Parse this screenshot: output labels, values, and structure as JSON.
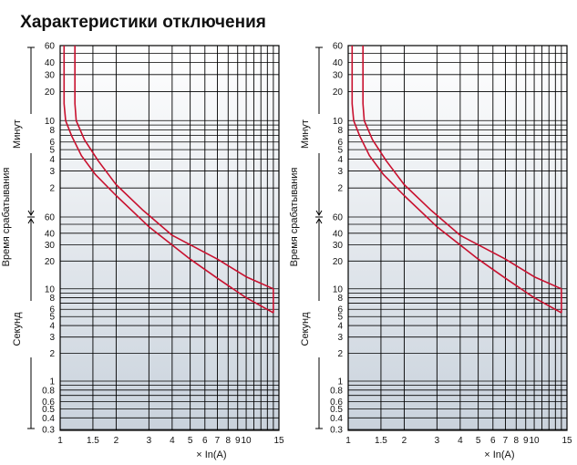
{
  "chart_data": [
    {
      "type": "line",
      "title": "Характеристики отключения",
      "xlabel": "× In(A)",
      "ylabel": "Время срабатывания",
      "y_unit_labels": [
        "Минут",
        "Секунд"
      ],
      "x_scale": "log",
      "xlim": [
        1,
        15
      ],
      "x_ticks": [
        "1",
        "1.5",
        "2",
        "3",
        "4",
        "5",
        "6",
        "7",
        "8",
        "9",
        "10",
        "15"
      ],
      "y_scale": "log",
      "y_ticks_minutes": [
        "60",
        "40",
        "30",
        "20",
        "10",
        "8",
        "6",
        "5",
        "4",
        "3",
        "2"
      ],
      "y_ticks_seconds": [
        "60",
        "40",
        "30",
        "20",
        "10",
        "8",
        "6",
        "5",
        "4",
        "3",
        "2",
        "1",
        "0.8",
        "0.6",
        "0.5",
        "0.4",
        "0.3"
      ],
      "grid": true,
      "curve_color": "#c8102e",
      "series": [
        {
          "x": [
            1.05,
            1.05,
            1.07,
            1.15,
            1.3,
            1.55,
            2.0,
            3.0,
            5.0,
            7.0,
            10.0,
            14.0
          ],
          "y_seconds": [
            3600,
            900,
            600,
            420,
            260,
            165,
            100,
            47,
            21,
            13,
            8,
            5.5
          ]
        },
        {
          "x": [
            1.2,
            1.2,
            1.22,
            1.35,
            1.6,
            2.0,
            2.8,
            4.0,
            7.0,
            10.0,
            14.0
          ],
          "y_seconds": [
            3600,
            900,
            600,
            380,
            230,
            130,
            70,
            38,
            21,
            13.5,
            10
          ]
        }
      ],
      "closure": {
        "x": 14.0,
        "y_seconds_from": 10,
        "y_seconds_to": 5.5
      }
    },
    {
      "type": "line",
      "title": "Характеристики отключения",
      "xlabel": "× In(A)",
      "ylabel": "Время срабатывания",
      "y_unit_labels": [
        "Минут",
        "Секунд"
      ],
      "x_scale": "log",
      "xlim": [
        1,
        15
      ],
      "x_ticks": [
        "1",
        "1.5",
        "2",
        "3",
        "4",
        "5",
        "6",
        "7",
        "8",
        "9",
        "10",
        "15"
      ],
      "y_scale": "log",
      "y_ticks_minutes": [
        "60",
        "40",
        "30",
        "20",
        "10",
        "8",
        "6",
        "5",
        "4",
        "3",
        "2"
      ],
      "y_ticks_seconds": [
        "60",
        "40",
        "30",
        "20",
        "10",
        "8",
        "6",
        "5",
        "4",
        "3",
        "2",
        "1",
        "0.8",
        "0.6",
        "0.5",
        "0.4",
        "0.3"
      ],
      "grid": true,
      "curve_color": "#c8102e",
      "series": [
        {
          "x": [
            1.05,
            1.05,
            1.07,
            1.15,
            1.3,
            1.55,
            2.0,
            3.0,
            5.0,
            7.0,
            10.0,
            14.0
          ],
          "y_seconds": [
            3600,
            900,
            600,
            420,
            260,
            165,
            100,
            47,
            21,
            13,
            8,
            5.5
          ]
        },
        {
          "x": [
            1.2,
            1.2,
            1.22,
            1.35,
            1.6,
            2.0,
            2.8,
            4.0,
            7.0,
            10.0,
            14.0
          ],
          "y_seconds": [
            3600,
            900,
            600,
            380,
            230,
            130,
            70,
            38,
            21,
            13.5,
            10
          ]
        }
      ],
      "closure": {
        "x": 14.0,
        "y_seconds_from": 10,
        "y_seconds_to": 5.5
      }
    }
  ]
}
